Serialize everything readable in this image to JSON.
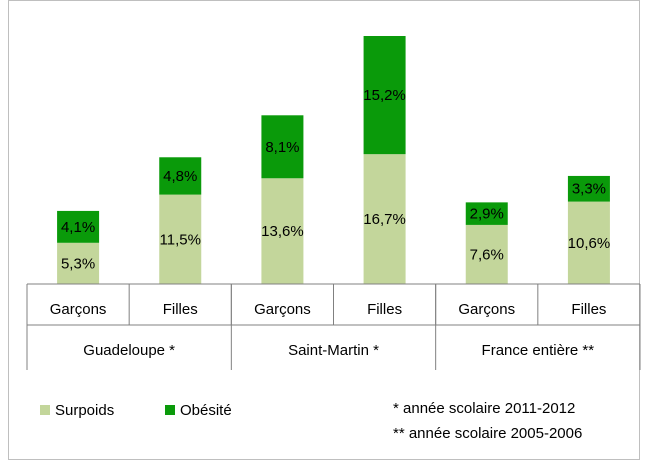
{
  "chart_data": {
    "type": "stacked-bar",
    "categories": [
      "Garçons",
      "Filles",
      "Garçons",
      "Filles",
      "Garçons",
      "Filles"
    ],
    "groups": [
      "Guadeloupe *",
      "Saint-Martin *",
      "France entière **"
    ],
    "series": [
      {
        "name": "Surpoids",
        "color": "#c3d69b",
        "values": [
          5.3,
          11.5,
          13.6,
          16.7,
          7.6,
          10.6
        ],
        "value_labels": [
          "5,3%",
          "11,5%",
          "13,6%",
          "16,7%",
          "7,6%",
          "10,6%"
        ]
      },
      {
        "name": "Obésité",
        "color": "#0a9a0a",
        "values": [
          4.1,
          4.8,
          8.1,
          15.2,
          2.9,
          3.3
        ],
        "value_labels": [
          "4,1%",
          "4,8%",
          "8,1%",
          "15,2%",
          "2,9%",
          "3,3%"
        ]
      }
    ],
    "notes": [
      "* année scolaire 2011-2012",
      "** année scolaire 2005-2006"
    ]
  }
}
